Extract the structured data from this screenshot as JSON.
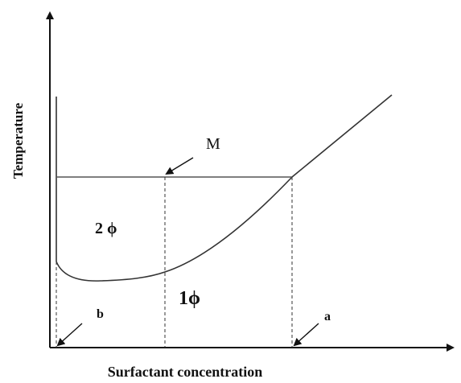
{
  "axes": {
    "y_label": "Temperature",
    "x_label": "Surfactant concentration"
  },
  "labels": {
    "point_m": "M",
    "region_two_phase": "2 ϕ",
    "region_one_phase": "1ϕ",
    "point_a": "a",
    "point_b": "b"
  }
}
